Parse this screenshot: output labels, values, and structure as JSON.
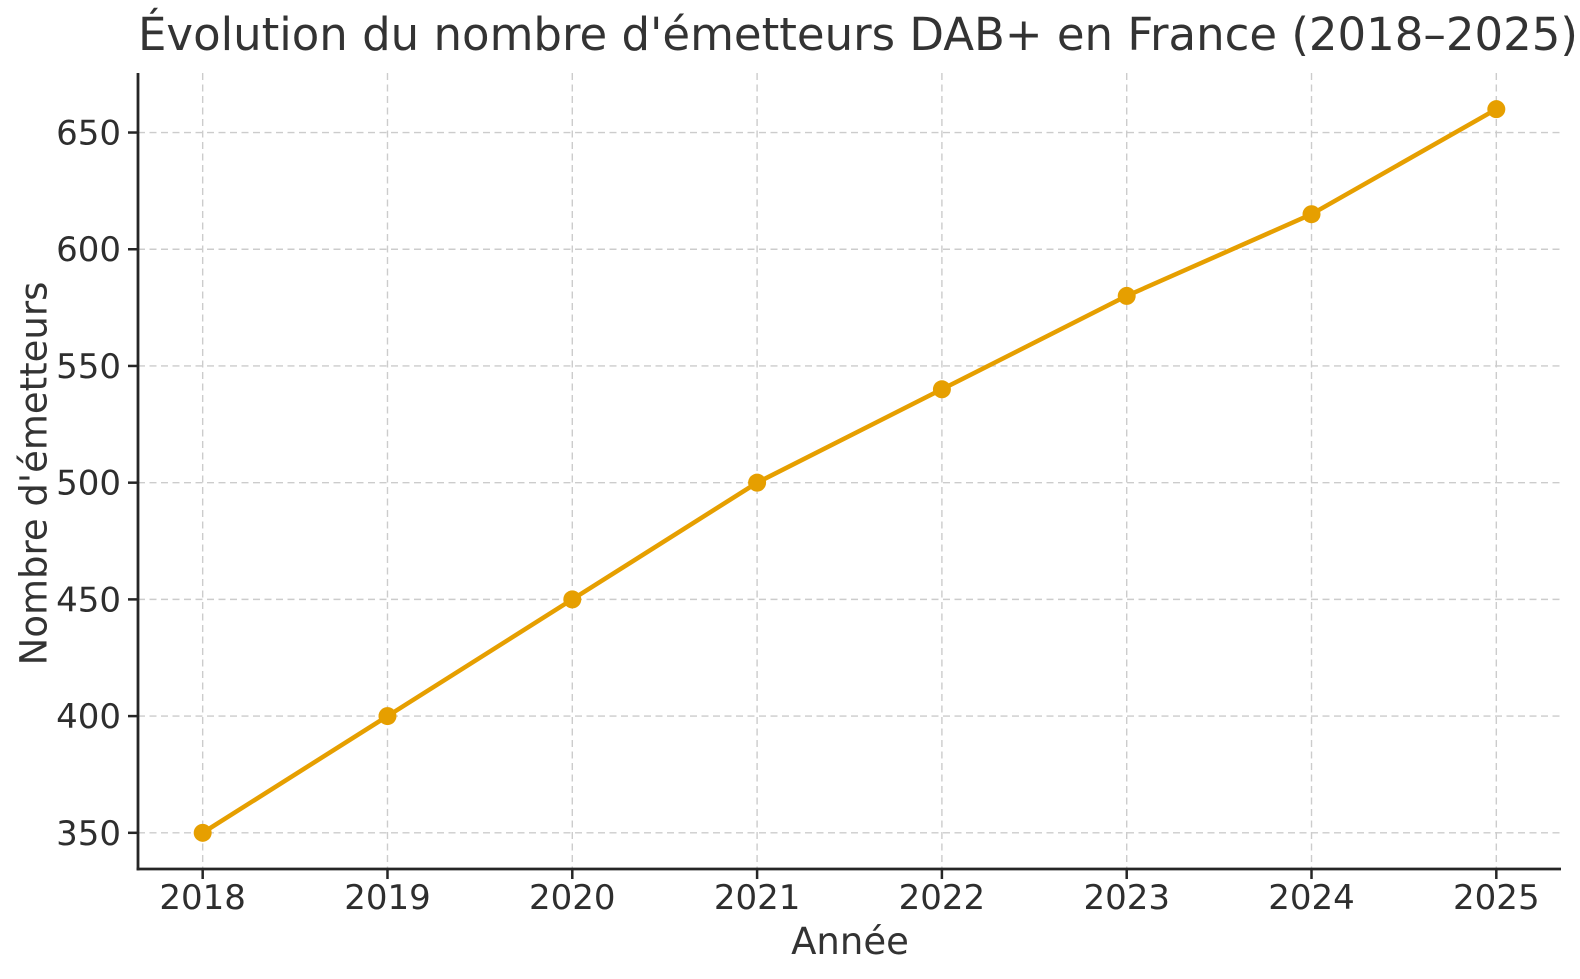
{
  "chart_data": {
    "type": "line",
    "title": "Évolution du nombre d'émetteurs DAB+ en France (2018–2025)",
    "xlabel": "Année",
    "ylabel": "Nombre d'émetteurs",
    "x": [
      2018,
      2019,
      2020,
      2021,
      2022,
      2023,
      2024,
      2025
    ],
    "values": [
      350,
      400,
      450,
      500,
      540,
      580,
      615,
      660
    ],
    "xticks": [
      2018,
      2019,
      2020,
      2021,
      2022,
      2023,
      2024,
      2025
    ],
    "yticks": [
      350,
      400,
      450,
      500,
      550,
      600,
      650
    ],
    "xlim": [
      2017.65,
      2025.35
    ],
    "ylim": [
      334.5,
      675.5
    ],
    "grid": true,
    "grid_style": "dashed",
    "legend": "none",
    "colors": {
      "line": "#E69F00",
      "marker": "#E69F00",
      "grid": "#cccccc",
      "spine": "#262626",
      "tick_label": "#2e2e2e",
      "text": "#333333"
    }
  }
}
